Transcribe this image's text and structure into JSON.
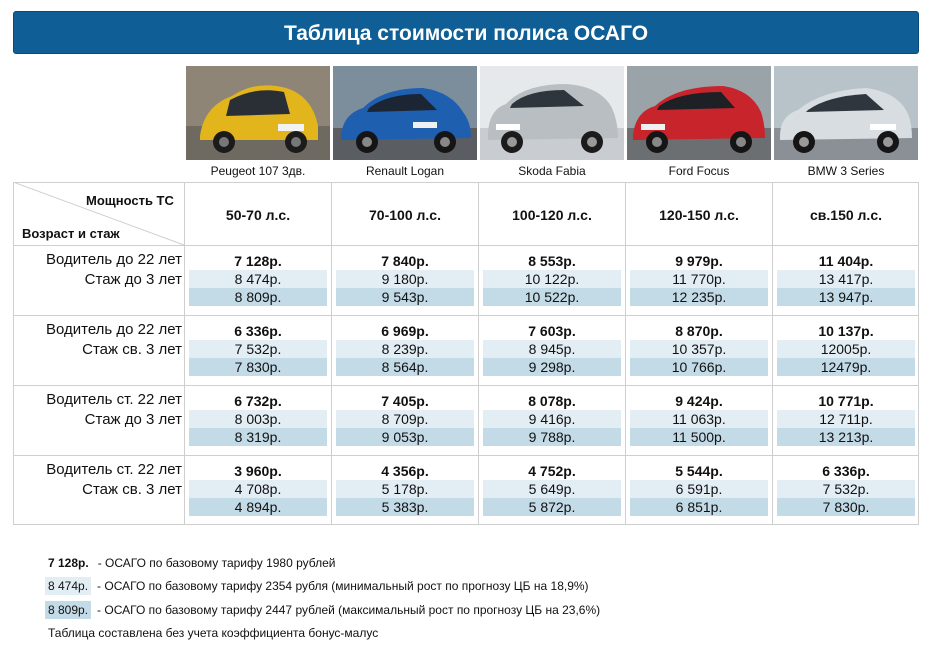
{
  "title": "Таблица стоимости полиса ОСАГО",
  "colors": {
    "title_bg": "#0f5f96",
    "min_row_bg": "#e2edf4",
    "max_row_bg": "#c3dae7"
  },
  "cars": [
    {
      "name": "Peugeot 107 3дв.",
      "color": "#e3b51c"
    },
    {
      "name": "Renault Logan",
      "color": "#1f5fb0"
    },
    {
      "name": "Skoda Fabia",
      "color": "#b9bec3"
    },
    {
      "name": "Ford Focus",
      "color": "#c8242c"
    },
    {
      "name": "BMW 3 Series",
      "color": "#d8dde2"
    }
  ],
  "header": {
    "power_label": "Мощность ТС",
    "age_label": "Возраст и стаж",
    "ranges": [
      "50-70 л.с.",
      "70-100 л.с.",
      "100-120 л.с.",
      "120-150 л.с.",
      "св.150 л.с."
    ]
  },
  "groups": [
    {
      "line1": "Водитель до 22 лет",
      "line2": "Стаж до 3 лет",
      "base": [
        "7 128р.",
        "7 840р.",
        "8 553р.",
        "9 979р.",
        "11 404р."
      ],
      "min": [
        "8 474р.",
        "9 180р.",
        "10 122р.",
        "11 770р.",
        "13 417р."
      ],
      "max": [
        "8 809р.",
        "9 543р.",
        "10 522р.",
        "12 235р.",
        "13 947р."
      ]
    },
    {
      "line1": "Водитель до 22 лет",
      "line2": "Стаж св. 3 лет",
      "base": [
        "6 336р.",
        "6 969р.",
        "7 603р.",
        "8 870р.",
        "10 137р."
      ],
      "min": [
        "7 532р.",
        "8 239р.",
        "8 945р.",
        "10 357р.",
        "12005р."
      ],
      "max": [
        "7 830р.",
        "8 564р.",
        "9 298р.",
        "10 766р.",
        "12479р."
      ]
    },
    {
      "line1": "Водитель ст. 22 лет",
      "line2": "Стаж до 3 лет",
      "base": [
        "6 732р.",
        "7 405р.",
        "8 078р.",
        "9 424р.",
        "10 771р."
      ],
      "min": [
        "8 003р.",
        "8 709р.",
        "9 416р.",
        "11 063р.",
        "12 711р."
      ],
      "max": [
        "8 319р.",
        "9 053р.",
        "9 788р.",
        "11 500р.",
        "13 213р."
      ]
    },
    {
      "line1": "Водитель ст. 22 лет",
      "line2": "Стаж св. 3 лет",
      "base": [
        "3 960р.",
        "4 356р.",
        "4 752р.",
        "5 544р.",
        "6 336р."
      ],
      "min": [
        "4 708р.",
        "5 178р.",
        "5 649р.",
        "6 591р.",
        "7 532р."
      ],
      "max": [
        "4 894р.",
        "5 383р.",
        "5 872р.",
        "6 851р.",
        "7 830р."
      ]
    }
  ],
  "legend": [
    {
      "sample": "7 128р.",
      "text": "-  ОСАГО по базовому тарифу 1980 рублей"
    },
    {
      "sample": "8 474р.",
      "text": "-  ОСАГО по базовому тарифу 2354 рубля (минимальный рост по прогнозу ЦБ на 18,9%)"
    },
    {
      "sample": "8 809р.",
      "text": "-  ОСАГО по базовому тарифу 2447 рублей (максимальный рост по прогнозу ЦБ на 23,6%)"
    }
  ],
  "footnote": "Таблица составлена без учета коэффициента бонус-малус"
}
